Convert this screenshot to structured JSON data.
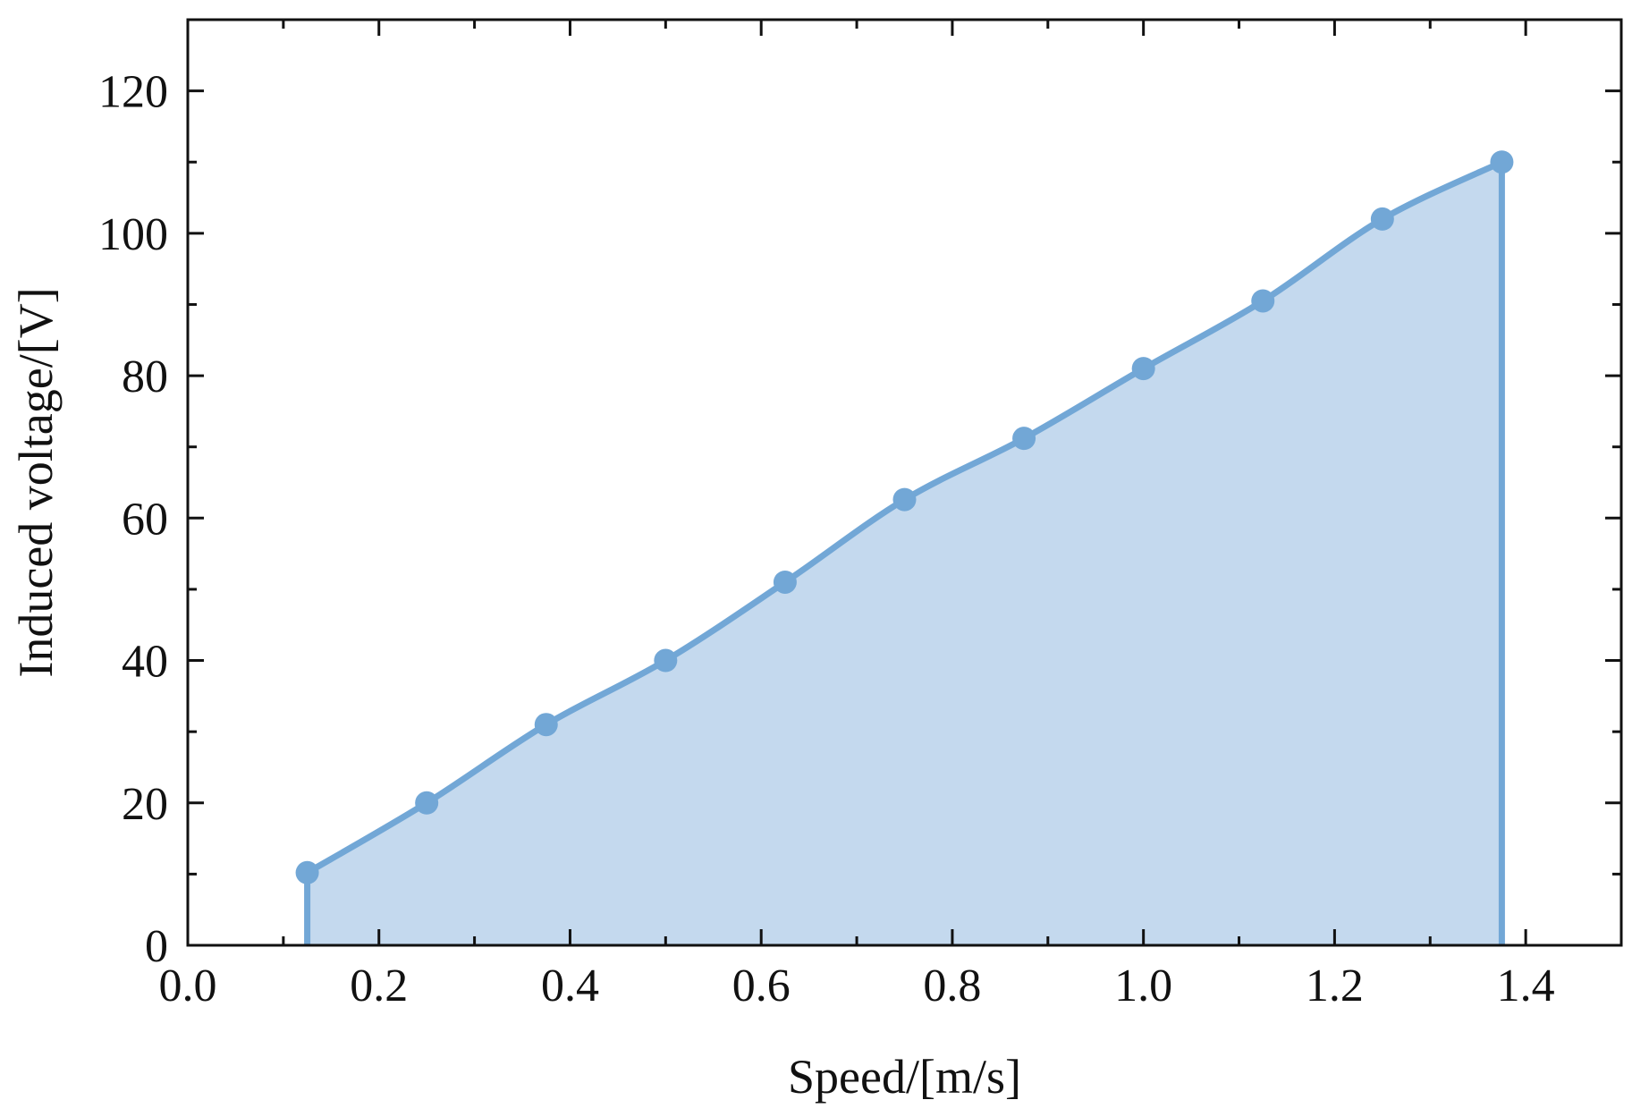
{
  "chart_data": {
    "type": "area",
    "title": "",
    "xlabel": "Speed/[m/s]",
    "ylabel": "Induced voltage/[V]",
    "xlim": [
      0.0,
      1.5
    ],
    "ylim": [
      0,
      130
    ],
    "x_ticks": [
      0.0,
      0.2,
      0.4,
      0.6,
      0.8,
      1.0,
      1.2,
      1.4
    ],
    "x_tick_labels": [
      "0.0",
      "0.2",
      "0.4",
      "0.6",
      "0.8",
      "1.0",
      "1.2",
      "1.4"
    ],
    "y_ticks": [
      0,
      20,
      40,
      60,
      80,
      100,
      120
    ],
    "y_tick_labels": [
      "0",
      "20",
      "40",
      "60",
      "80",
      "100",
      "120"
    ],
    "grid": false,
    "series": [
      {
        "x": [
          0.125,
          0.25,
          0.375,
          0.5,
          0.625,
          0.75,
          0.875,
          1.0,
          1.125,
          1.25,
          1.375
        ],
        "y": [
          10.2,
          20.0,
          31.0,
          40.0,
          51.0,
          62.6,
          71.2,
          81.0,
          90.5,
          102.0,
          110.0
        ],
        "line_color": "#72a7d6",
        "fill_color": "#c4d9ee",
        "marker": "circle"
      }
    ]
  }
}
